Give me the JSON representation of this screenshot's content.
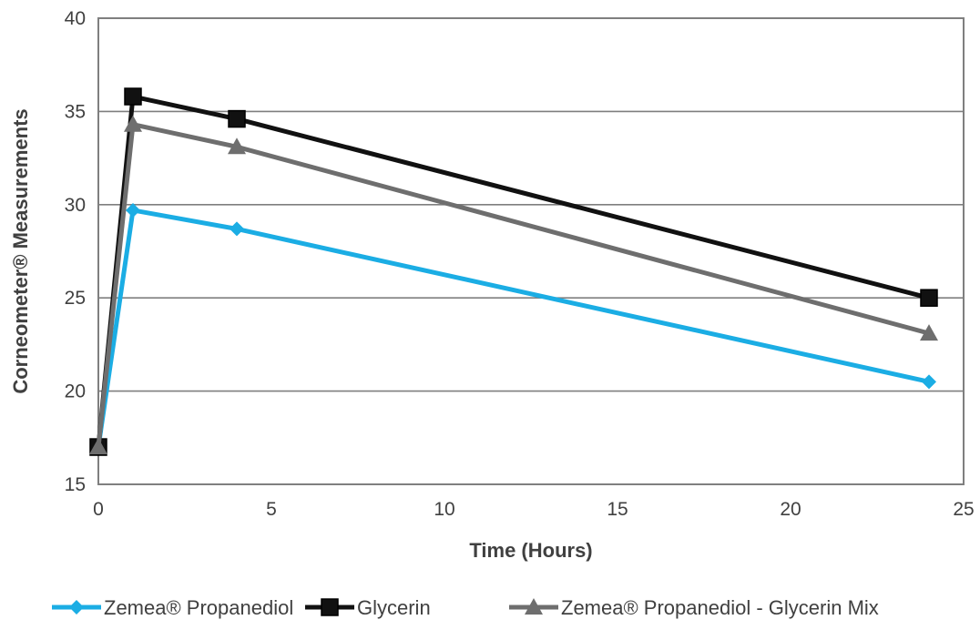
{
  "chart_data": {
    "type": "line",
    "title": "",
    "xlabel": "Time (Hours)",
    "ylabel": "Corneometer® Measurements",
    "xlim": [
      0,
      25
    ],
    "ylim": [
      15,
      40
    ],
    "x_ticks": [
      "0",
      "5",
      "10",
      "15",
      "20",
      "25"
    ],
    "y_ticks": [
      "15",
      "20",
      "25",
      "30",
      "35",
      "40"
    ],
    "grid": "horizontal",
    "legend_position": "bottom",
    "series": [
      {
        "name": "Zemea® Propanediol",
        "color": "#1BADE4",
        "marker": "diamond",
        "points": [
          [
            0,
            17.0
          ],
          [
            1,
            29.7
          ],
          [
            4,
            28.7
          ],
          [
            24,
            20.5
          ]
        ]
      },
      {
        "name": "Glycerin",
        "color": "#111111",
        "marker": "square",
        "points": [
          [
            0,
            17.0
          ],
          [
            1,
            35.8
          ],
          [
            4,
            34.6
          ],
          [
            24,
            25.0
          ]
        ]
      },
      {
        "name": "Zemea® Propanediol - Glycerin Mix",
        "color": "#6E6E6E",
        "marker": "triangle",
        "points": [
          [
            0,
            17.0
          ],
          [
            1,
            34.3
          ],
          [
            4,
            33.1
          ],
          [
            24,
            23.1
          ]
        ]
      }
    ]
  }
}
